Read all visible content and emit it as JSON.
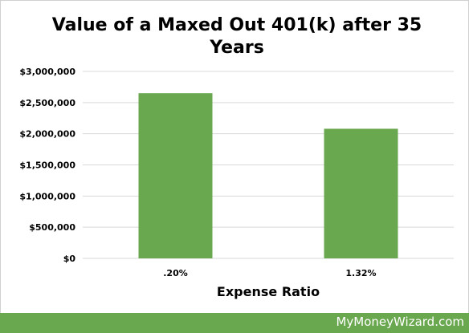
{
  "chart_data": {
    "type": "bar",
    "title": "Value of a Maxed Out 401(k) after 35 Years",
    "xlabel": "Expense Ratio",
    "ylabel": "",
    "categories": [
      ".20%",
      "1.32%"
    ],
    "values": [
      2650000,
      2080000
    ],
    "ylim": [
      0,
      3000000
    ],
    "yticks": [
      0,
      500000,
      1000000,
      1500000,
      2000000,
      2500000,
      3000000
    ],
    "ytick_labels": [
      "$0",
      "$500,000",
      "$1,000,000",
      "$1,500,000",
      "$2,000,000",
      "$2,500,000",
      "$3,000,000"
    ],
    "grid": true,
    "legend": "none",
    "bar_color": "#6aa84f"
  },
  "footer": {
    "brand": "MyMoneyWizard.com",
    "color": "#6aa84f"
  }
}
